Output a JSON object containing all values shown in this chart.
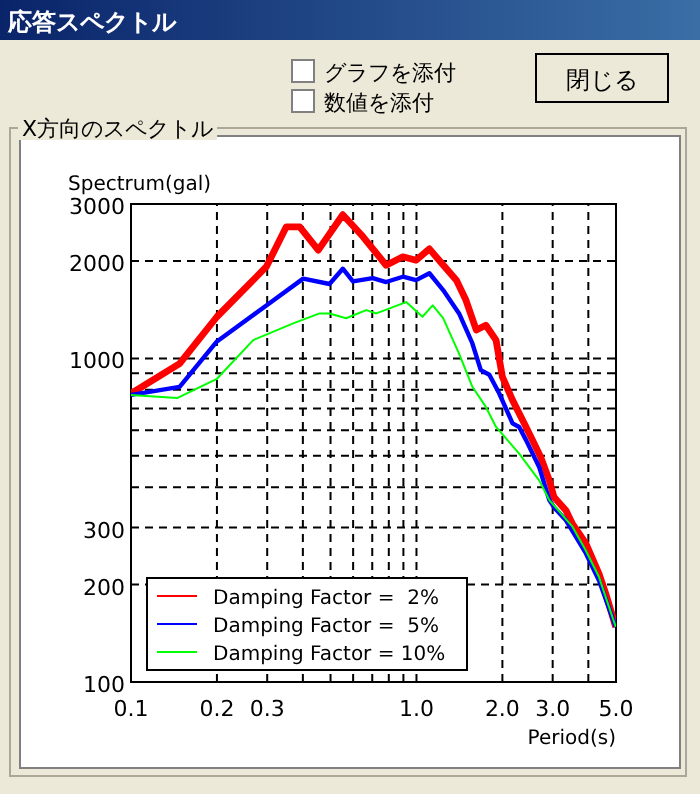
{
  "chart_data": {
    "type": "line",
    "title": "X方向のスペクトル",
    "annotations": [
      "応答スペクトル",
      "グラフを添付",
      "数値を添付",
      "閉じる"
    ],
    "ylabel": "Spectrum(gal)",
    "xlabel": "Period(s)",
    "log": "xy",
    "grid": true,
    "legend": "bottom left",
    "marker": "none",
    "line_style": "solid",
    "xlim": [
      0.1,
      5
    ],
    "ylim": [
      100,
      3000
    ],
    "xticks": [
      0.1,
      0.2,
      0.3,
      {
        "value": 0.4,
        "label": null
      },
      {
        "value": 0.5,
        "label": null
      },
      {
        "value": 0.6,
        "label": null
      },
      {
        "value": 0.7,
        "label": null
      },
      {
        "value": 0.8,
        "label": null
      },
      {
        "value": 0.9,
        "label": null
      },
      {
        "value": 1,
        "label": "1.0"
      },
      {
        "value": 2,
        "label": "2.0"
      },
      {
        "value": 3,
        "label": "3.0"
      },
      {
        "value": 4,
        "label": null
      },
      {
        "value": 5,
        "label": "5.0"
      }
    ],
    "yticks": [
      100,
      200,
      300,
      {
        "value": 400,
        "label": null
      },
      {
        "value": 500,
        "label": null
      },
      {
        "value": 600,
        "label": null
      },
      {
        "value": 700,
        "label": null
      },
      {
        "value": 800,
        "label": null
      },
      {
        "value": 900,
        "label": null
      },
      1000,
      2000,
      3000
    ],
    "series": [
      {
        "name": "Damping Factor =  2%",
        "color": "#ff0000",
        "x": [
          0.1,
          0.148,
          0.2,
          0.298,
          0.35,
          0.39,
          0.453,
          0.552,
          0.649,
          0.783,
          0.896,
          0.997,
          1.11,
          1.2,
          1.38,
          1.49,
          1.62,
          1.75,
          1.9,
          2.0,
          2.17,
          2.42,
          2.55,
          2.72,
          2.92,
          3.03,
          3.34,
          3.52,
          3.92,
          4.36,
          4.6,
          4.99
        ],
        "values": [
          779,
          963,
          1345,
          1920,
          2550,
          2550,
          2160,
          2780,
          2380,
          1940,
          2060,
          2010,
          2180,
          2010,
          1745,
          1515,
          1224,
          1266,
          1139,
          877,
          743,
          614,
          559,
          497,
          420,
          373,
          339,
          308,
          268,
          216,
          188,
          148
        ]
      },
      {
        "name": "Damping Factor =  5%",
        "color": "#0000ff",
        "x": [
          0.1,
          0.148,
          0.2,
          0.298,
          0.401,
          0.496,
          0.552,
          0.599,
          0.703,
          0.783,
          0.896,
          0.997,
          1.11,
          1.24,
          1.41,
          1.57,
          1.68,
          1.8,
          1.95,
          2.17,
          2.29,
          2.42,
          2.69,
          2.92,
          3.03,
          3.34,
          3.92,
          4.36,
          4.99
        ],
        "values": [
          771,
          817,
          1128,
          1458,
          1764,
          1698,
          1893,
          1729,
          1770,
          1722,
          1788,
          1745,
          1833,
          1626,
          1377,
          1112,
          920,
          890,
          779,
          630,
          614,
          559,
          462,
          365,
          347,
          316,
          250,
          206,
          148
        ]
      },
      {
        "name": "Damping Factor = 10%",
        "color": "#00ff00",
        "x": [
          0.1,
          0.145,
          0.2,
          0.268,
          0.37,
          0.458,
          0.496,
          0.567,
          0.667,
          0.723,
          0.92,
          1.05,
          1.14,
          1.24,
          1.41,
          1.57,
          1.75,
          1.9,
          2.29,
          2.69,
          2.92,
          3.52,
          3.92,
          4.36,
          4.99
        ],
        "values": [
          771,
          754,
          865,
          1139,
          1283,
          1377,
          1377,
          1331,
          1410,
          1377,
          1493,
          1345,
          1458,
          1331,
          1035,
          817,
          708,
          614,
          508,
          420,
          365,
          302,
          255,
          211,
          148
        ]
      }
    ]
  }
}
